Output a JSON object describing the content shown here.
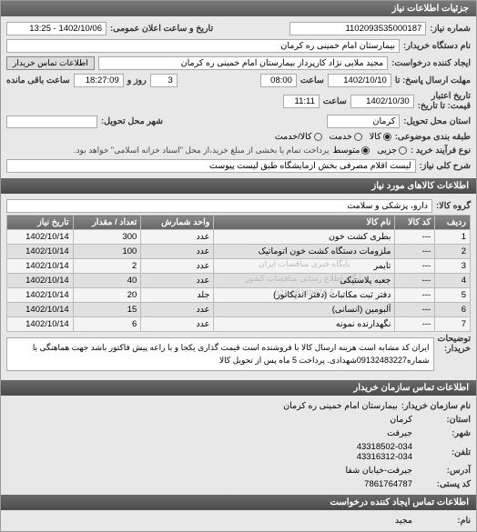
{
  "header": {
    "title": "جزئیات اطلاعات نیاز"
  },
  "top": {
    "req_no_label": "شماره نیاز:",
    "req_no": "1102093535000187",
    "pub_date_label": "تاریخ و ساعت اعلان عمومی:",
    "pub_date": "1402/10/06 - 13:25",
    "device_label": "نام دستگاه خریدار:",
    "device": "بیمارستان امام خمینی ره کرمان",
    "requester_label": "ایجاد کننده درخواست:",
    "requester": "مجید ملایی نژاد کارپرداز بیمارستان امام خمینی ره کرمان",
    "contact_btn": "اطلاعات تماس خریدار",
    "deadline_label": "مهلت ارسال پاسخ: تا",
    "deadline_date": "1402/10/10",
    "time_lbl": "ساعت",
    "deadline_time": "08:00",
    "remain_days": "3",
    "remain_days_lbl": "روز و",
    "remain_time": "18:27:09",
    "remain_time_lbl": "ساعت باقی مانده",
    "validity_label": "تاریخ اعتبار\nقیمت: تا تاریخ:",
    "validity_date": "1402/10/30",
    "validity_time": "11:11",
    "loc_label": "استان محل تحویل:",
    "loc": "کرمان",
    "city_label": "شهر محل تحویل:",
    "grouping_label": "طبقه بندی موضوعی:",
    "grouping": {
      "options": [
        "کالا",
        "خدمت",
        "کالا/خدمت"
      ],
      "selected": 0
    },
    "proc_label": "نوع فرآیند خرید :",
    "proc": {
      "options": [
        "جزیی",
        "متوسط"
      ],
      "selected": 1
    },
    "proc_note": "پرداخت تمام یا بخشی از مبلغ خرید،از محل \"اسناد خزانه اسلامی\" خواهد بود.",
    "desc_label": "شرح کلی نیاز:",
    "desc": "لیست اقلام مصرفی بخش ازمایشگاه طبق لیست پیوست"
  },
  "items_section": {
    "title": "اطلاعات کالاهای مورد نیاز",
    "group_label": "گروه کالا:",
    "group": "دارو، پزشکی و سلامت",
    "columns": [
      "ردیف",
      "کد کالا",
      "نام کالا",
      "واحد شمارش",
      "تعداد / مقدار",
      "تاریخ نیاز"
    ],
    "rows": [
      [
        "1",
        "---",
        "بطری کشت خون",
        "عدد",
        "300",
        "1402/10/14"
      ],
      [
        "2",
        "---",
        "ملزومات دستگاه کشت خون اتوماتیک",
        "عدد",
        "100",
        "1402/10/14"
      ],
      [
        "3",
        "---",
        "تایمر",
        "عدد",
        "2",
        "1402/10/14"
      ],
      [
        "4",
        "---",
        "جعبه پلاستیکی",
        "عدد",
        "40",
        "1402/10/14"
      ],
      [
        "5",
        "---",
        "دفتر ثبت مکاتبات (دفتر اندیکاتور)",
        "جلد",
        "20",
        "1402/10/14"
      ],
      [
        "6",
        "---",
        "آلبومین (انسانی)",
        "عدد",
        "15",
        "1402/10/14"
      ],
      [
        "7",
        "---",
        "نگهدارنده نمونه",
        "عدد",
        "6",
        "1402/10/14"
      ]
    ],
    "watermark_rows": [
      "پایگاه خبری مناقصات ایران",
      "پایگاه اطلاع رسانی مناقصات کشور",
      "021-88349670-5"
    ],
    "desc_label": "توضیحات\nخریدار:",
    "desc": "ایران کد مشابه است هزینه ارسال کالا با فروشنده است قیمت گذاری یکجا و با راعه پیش فاکتور باشد جهت هماهنگی با شماره09132483227شهدادی. پرداخت 5 ماه پس از تحویل کالا"
  },
  "contact": {
    "title": "اطلاعات تماس سازمان خریدار",
    "org_label": "نام سازمان خریدار:",
    "org": "بیمارستان امام خمینی ره کرمان",
    "province_label": "استان:",
    "province": "کرمان",
    "city_label": "شهر:",
    "city": "جیرفت",
    "tel_label": "تلفن:",
    "tel": "43318502-034\n43316312-034",
    "addr_label": "آدرس:",
    "addr": "جیرفت-خیابان شفا",
    "post_label": "کد پستی:",
    "post": "7861764787",
    "req_title": "اطلاعات تماس ایجاد کننده درخواست",
    "name_label": "نام:",
    "name": "مجید"
  }
}
